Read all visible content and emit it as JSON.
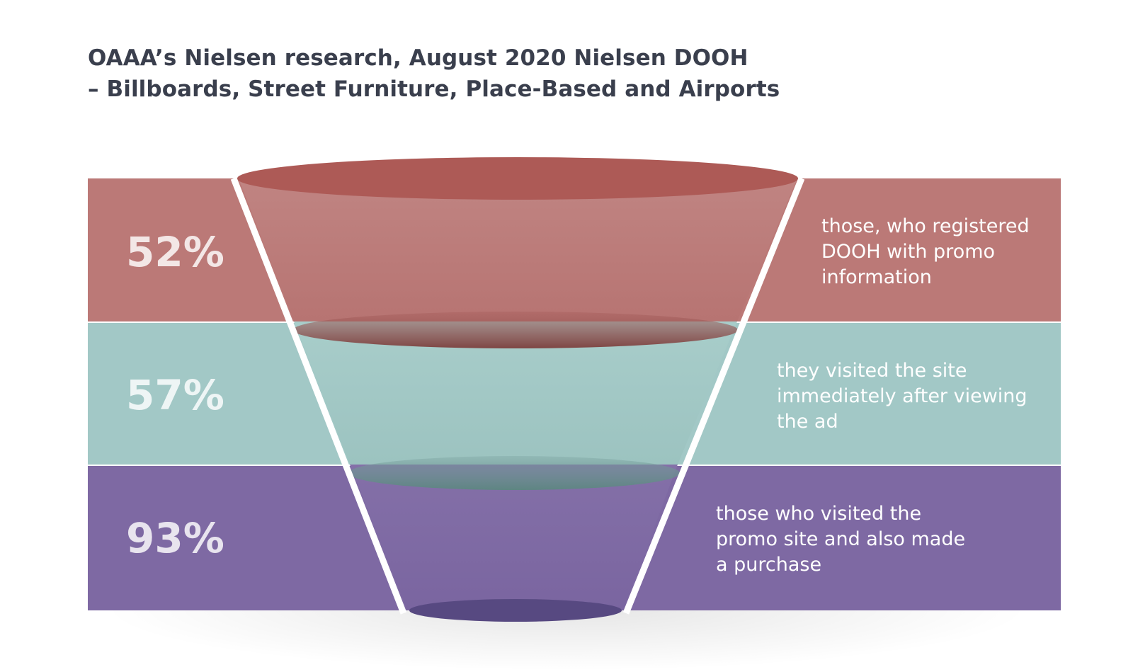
{
  "header": {
    "title_line1": "OAAA’s Nielsen research, August 2020 Nielsen DOOH",
    "title_line2": "– Billboards, Street Furniture, Place-Based and Airports"
  },
  "colors": {
    "band1": "#bb7977",
    "band2": "#a2c8c6",
    "band3": "#7e69a3",
    "rim1": "#ad5a56",
    "rim2": "#8eb5b1",
    "rim3": "#574981",
    "title": "#3a3f4d"
  },
  "stages": [
    {
      "percent": "52%",
      "description": [
        "those, who registered",
        "DOOH with promo",
        "information"
      ]
    },
    {
      "percent": "57%",
      "description": [
        "they visited the site",
        "immediately after viewing",
        "the ad"
      ]
    },
    {
      "percent": "93%",
      "description": [
        "those who visited the",
        "promo site and also made",
        "a purchase"
      ]
    }
  ]
}
